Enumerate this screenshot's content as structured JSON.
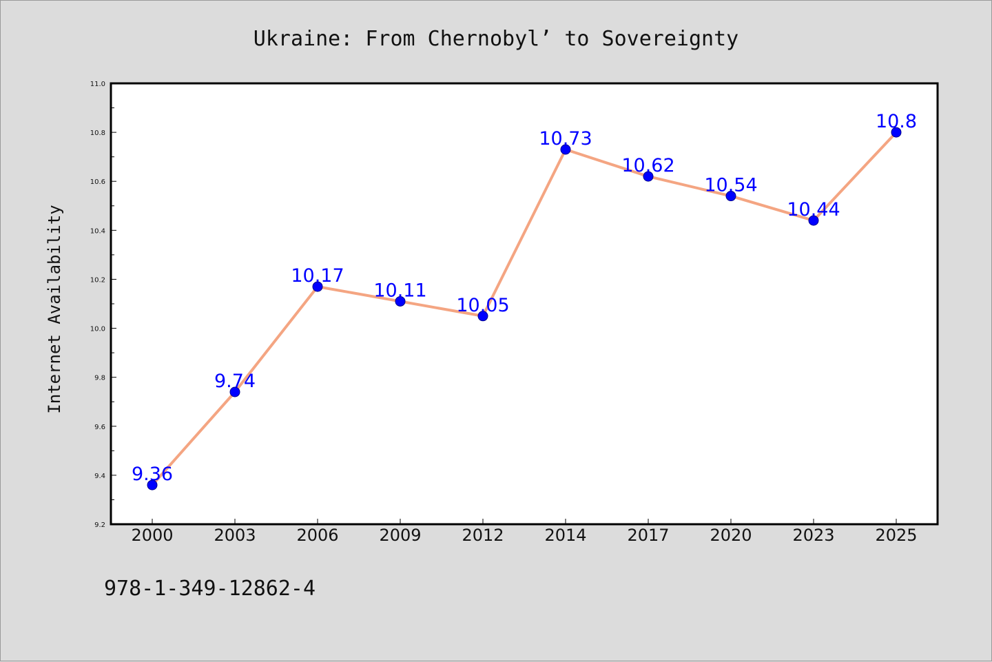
{
  "chart_data": {
    "type": "line",
    "title": "Ukraine: From Chernobyl’ to Sovereignty",
    "xlabel": "",
    "ylabel": "Internet Availability",
    "categories": [
      "2000",
      "2003",
      "2006",
      "2009",
      "2012",
      "2014",
      "2017",
      "2020",
      "2023",
      "2025"
    ],
    "series": [
      {
        "values": [
          9.36,
          9.74,
          10.17,
          10.11,
          10.05,
          10.73,
          10.62,
          10.54,
          10.44,
          10.8
        ],
        "labels": [
          "9.36",
          "9.74",
          "10.17",
          "10.11",
          "10.05",
          "10.73",
          "10.62",
          "10.54",
          "10.44",
          "10.8"
        ]
      }
    ],
    "ylim": [
      9.2,
      11.0
    ],
    "yticks": [
      "9.2",
      "9.4",
      "9.6",
      "9.8",
      "10.0",
      "10.2",
      "10.4",
      "10.6",
      "10.8",
      "11.0"
    ],
    "grid": false,
    "colors": {
      "line": "#f4a582",
      "marker": "#0000ff",
      "label": "#0000ff"
    }
  },
  "footer": {
    "isbn": "978-1-349-12862-4"
  }
}
